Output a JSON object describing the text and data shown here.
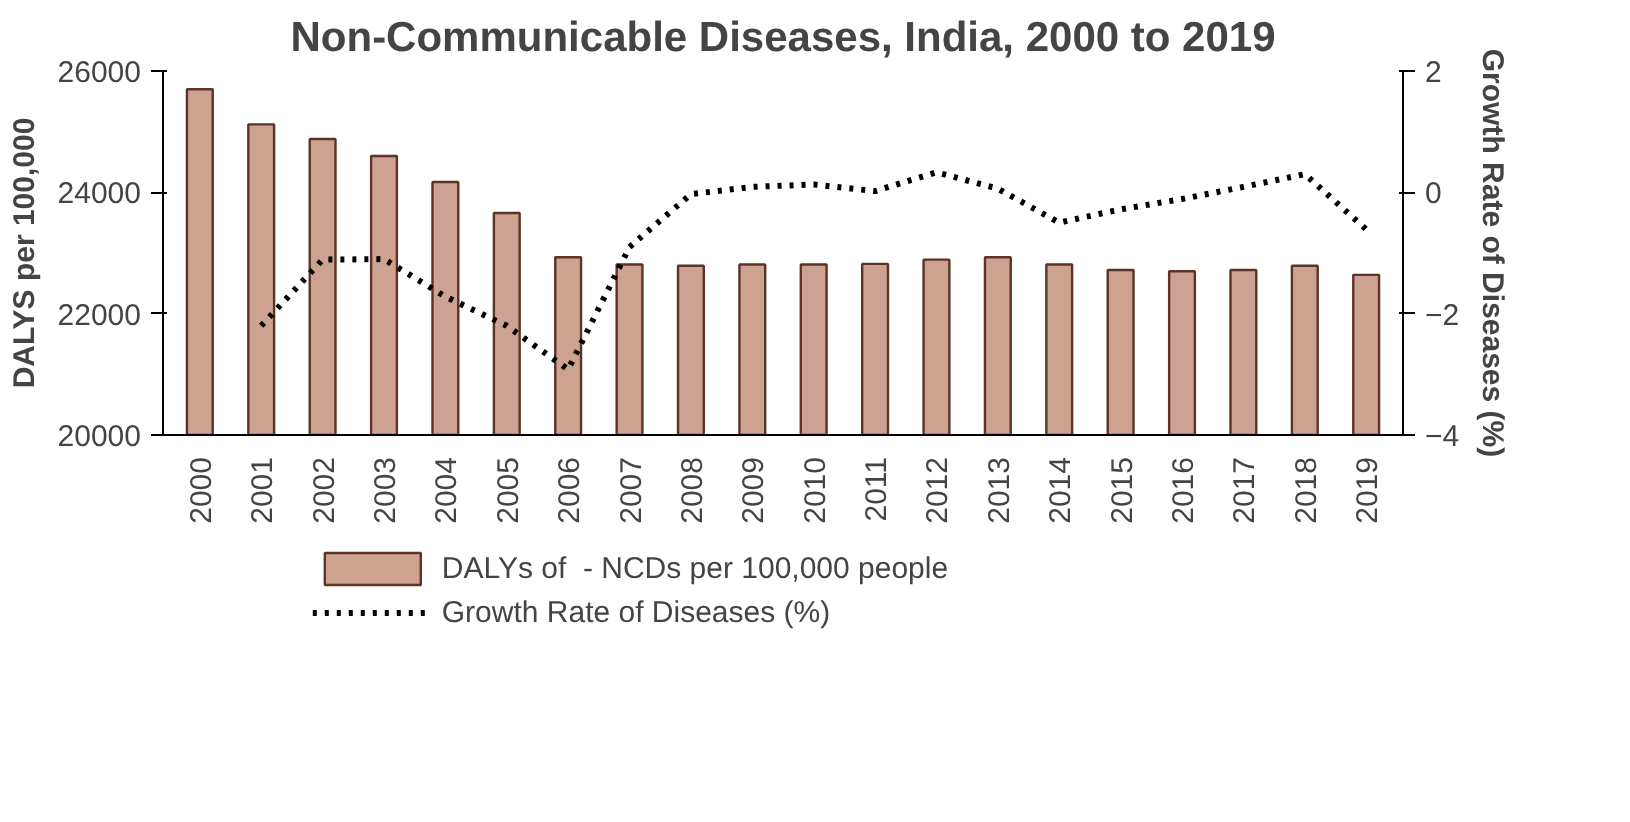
{
  "chart_data": {
    "type": "bar",
    "title": "Non-Communicable Diseases, India, 2000 to 2019",
    "ylabel": "DALYS per 100,000",
    "y2label": "Growth Rate of Diseases (%)",
    "categories": [
      "2000",
      "2001",
      "2002",
      "2003",
      "2004",
      "2005",
      "2006",
      "2007",
      "2008",
      "2009",
      "2010",
      "2011",
      "2012",
      "2013",
      "2014",
      "2015",
      "2016",
      "2017",
      "2018",
      "2019"
    ],
    "series": [
      {
        "name": "DALYs of  - NCDs per 100,000 people",
        "color": "#cda291",
        "values": [
          25700,
          25120,
          24880,
          24600,
          24170,
          23660,
          22930,
          22810,
          22790,
          22810,
          22810,
          22820,
          22890,
          22930,
          22810,
          22720,
          22700,
          22720,
          22790,
          22640
        ]
      },
      {
        "name": "Growth Rate of Diseases (%)",
        "type": "line",
        "axis": "y2",
        "color": "#000000",
        "line_style": "dotted",
        "values": [
          null,
          -2.2,
          -1.11,
          -1.1,
          -1.72,
          -2.2,
          -2.92,
          -0.9,
          -0.03,
          0.09,
          0.13,
          0.02,
          0.33,
          0.06,
          -0.5,
          -0.28,
          -0.11,
          0.09,
          0.3,
          -0.61
        ]
      }
    ],
    "ylim": [
      20000,
      26000
    ],
    "yticks": [
      20000,
      22000,
      24000,
      26000
    ],
    "y2lim": [
      -4,
      2
    ],
    "y2ticks": [
      -4,
      -2,
      0,
      2
    ],
    "grid": false,
    "legend": "bottom"
  }
}
